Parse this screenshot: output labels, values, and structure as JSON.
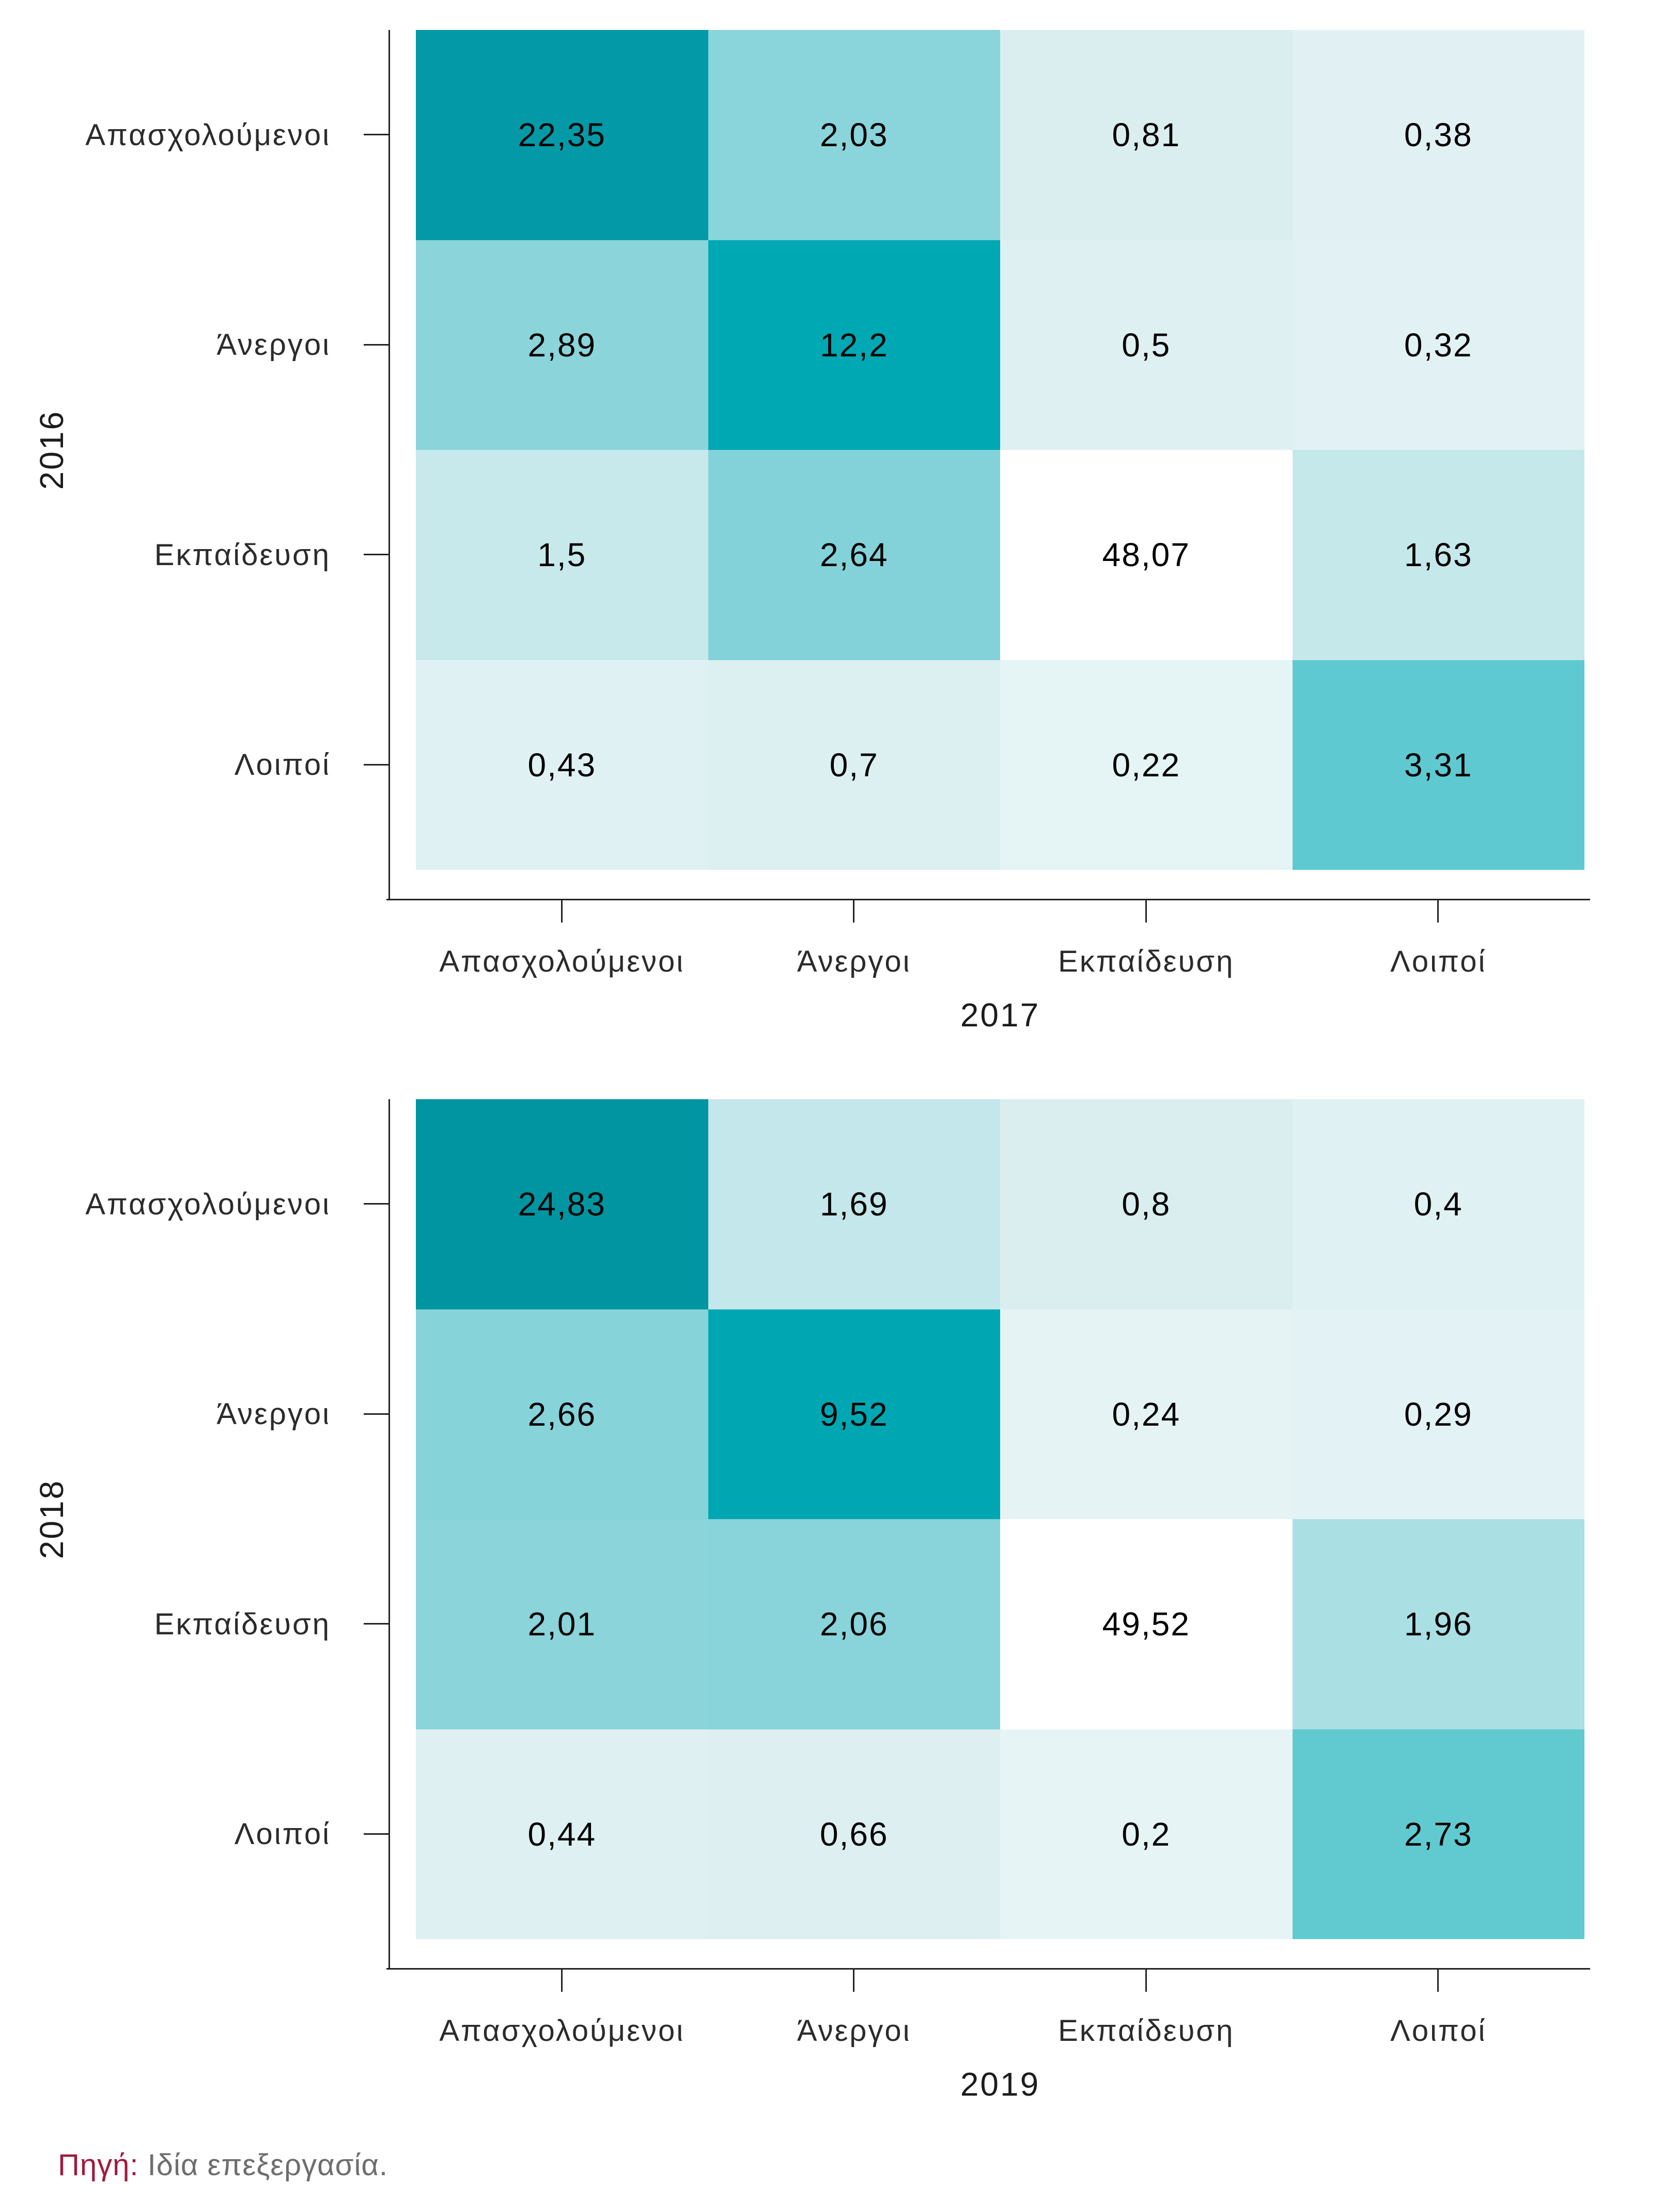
{
  "footer": {
    "prefix": "Πηγή:",
    "text": " Ιδία επεξεργασία."
  },
  "palette": {
    "axis_line": "#222222",
    "label_color": "#2b2b2b",
    "value_color": "#000000",
    "na_cell": "#ffffff",
    "scale_low": "#e8f5f6",
    "scale_high": "#00929f",
    "source_prefix_color": "#a01a3e",
    "source_text_color": "#6e6e6e"
  },
  "figures": [
    {
      "y_title": "2016",
      "x_title": "2017",
      "row_labels": [
        "Απασχολούμενοι",
        "Άνεργοι",
        "Εκπαίδευση",
        "Λοιποί"
      ],
      "col_labels": [
        "Απασχολούμενοι",
        "Άνεργοι",
        "Εκπαίδευση",
        "Λοιποί"
      ],
      "cells": [
        [
          {
            "v": "22,35",
            "c": "#0499a7"
          },
          {
            "v": "2,03",
            "c": "#8ad5db"
          },
          {
            "v": "0,81",
            "c": "#daeef0"
          },
          {
            "v": "0,38",
            "c": "#e1f1f3"
          }
        ],
        [
          {
            "v": "2,89",
            "c": "#8bd4da"
          },
          {
            "v": "12,2",
            "c": "#00a8b4"
          },
          {
            "v": "0,5",
            "c": "#dff0f2"
          },
          {
            "v": "0,32",
            "c": "#e2f2f4"
          }
        ],
        [
          {
            "v": "1,5",
            "c": "#c7e9ec"
          },
          {
            "v": "2,64",
            "c": "#83d2d9"
          },
          {
            "v": "48,07",
            "c": "#ffffff"
          },
          {
            "v": "1,63",
            "c": "#c5e8eb"
          }
        ],
        [
          {
            "v": "0,43",
            "c": "#e0f1f3"
          },
          {
            "v": "0,7",
            "c": "#dceff1"
          },
          {
            "v": "0,22",
            "c": "#e5f4f5"
          },
          {
            "v": "3,31",
            "c": "#5fc9d1"
          }
        ]
      ]
    },
    {
      "y_title": "2018",
      "x_title": "2019",
      "row_labels": [
        "Απασχολούμενοι",
        "Άνεργοι",
        "Εκπαίδευση",
        "Λοιποί"
      ],
      "col_labels": [
        "Απασχολούμενοι",
        "Άνεργοι",
        "Εκπαίδευση",
        "Λοιποί"
      ],
      "cells": [
        [
          {
            "v": "24,83",
            "c": "#0195a2"
          },
          {
            "v": "1,69",
            "c": "#c3e7ea"
          },
          {
            "v": "0,8",
            "c": "#daeef0"
          },
          {
            "v": "0,4",
            "c": "#e0f1f3"
          }
        ],
        [
          {
            "v": "2,66",
            "c": "#86d3da"
          },
          {
            "v": "9,52",
            "c": "#00a7b3"
          },
          {
            "v": "0,24",
            "c": "#e5f3f5"
          },
          {
            "v": "0,29",
            "c": "#e3f2f4"
          }
        ],
        [
          {
            "v": "2,01",
            "c": "#8ad4da"
          },
          {
            "v": "2,06",
            "c": "#89d4da"
          },
          {
            "v": "49,52",
            "c": "#ffffff"
          },
          {
            "v": "1,96",
            "c": "#aadfe4"
          }
        ],
        [
          {
            "v": "0,44",
            "c": "#dff0f2"
          },
          {
            "v": "0,66",
            "c": "#ddeff1"
          },
          {
            "v": "0,2",
            "c": "#e6f4f5"
          },
          {
            "v": "2,73",
            "c": "#61cad1"
          }
        ]
      ]
    }
  ],
  "chart_data": [
    {
      "type": "heatmap",
      "title": "",
      "row_axis_label": "2016",
      "col_axis_label": "2017",
      "rows": [
        "Απασχολούμενοι",
        "Άνεργοι",
        "Εκπαίδευση",
        "Λοιποί"
      ],
      "columns": [
        "Απασχολούμενοι",
        "Άνεργοι",
        "Εκπαίδευση",
        "Λοιποί"
      ],
      "values": [
        [
          22.35,
          2.03,
          0.81,
          0.38
        ],
        [
          2.89,
          12.2,
          0.5,
          0.32
        ],
        [
          1.5,
          2.64,
          48.07,
          1.63
        ],
        [
          0.43,
          0.7,
          0.22,
          3.31
        ]
      ],
      "value_format": "comma-decimal",
      "legend": "none",
      "grid": "off",
      "color_low": "#e8f5f6",
      "color_high": "#00929f",
      "out_of_scale_color": "#ffffff"
    },
    {
      "type": "heatmap",
      "title": "",
      "row_axis_label": "2018",
      "col_axis_label": "2019",
      "rows": [
        "Απασχολούμενοι",
        "Άνεργοι",
        "Εκπαίδευση",
        "Λοιποί"
      ],
      "columns": [
        "Απασχολούμενοι",
        "Άνεργοι",
        "Εκπαίδευση",
        "Λοιποί"
      ],
      "values": [
        [
          24.83,
          1.69,
          0.8,
          0.4
        ],
        [
          2.66,
          9.52,
          0.24,
          0.29
        ],
        [
          2.01,
          2.06,
          49.52,
          1.96
        ],
        [
          0.44,
          0.66,
          0.2,
          2.73
        ]
      ],
      "value_format": "comma-decimal",
      "legend": "none",
      "grid": "off",
      "color_low": "#e8f5f6",
      "color_high": "#00929f",
      "out_of_scale_color": "#ffffff"
    }
  ]
}
